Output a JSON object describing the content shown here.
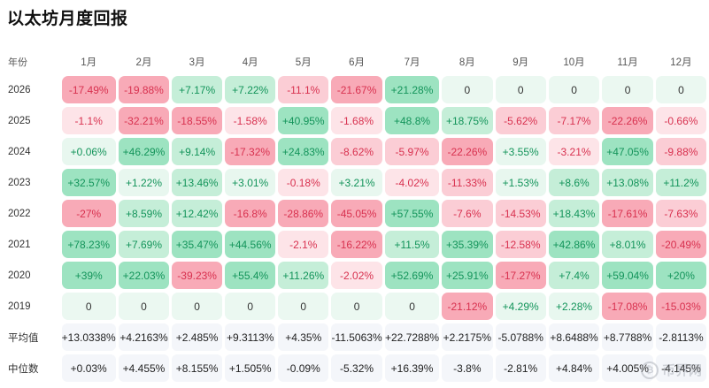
{
  "title": "以太坊月度回报",
  "header": {
    "year_label": "年份",
    "months": [
      "1月",
      "2月",
      "3月",
      "4月",
      "5月",
      "6月",
      "7月",
      "8月",
      "9月",
      "10月",
      "11月",
      "12月"
    ]
  },
  "rows": [
    {
      "year": "2026",
      "values": [
        "-17.49%",
        "-19.88%",
        "+7.17%",
        "+7.22%",
        "-11.1%",
        "-21.67%",
        "+21.28%",
        "0",
        "0",
        "0",
        "0",
        "0"
      ]
    },
    {
      "year": "2025",
      "values": [
        "-1.1%",
        "-32.21%",
        "-18.55%",
        "-1.58%",
        "+40.95%",
        "-1.68%",
        "+48.8%",
        "+18.75%",
        "-5.62%",
        "-7.17%",
        "-22.26%",
        "-0.66%"
      ]
    },
    {
      "year": "2024",
      "values": [
        "+0.06%",
        "+46.29%",
        "+9.14%",
        "-17.32%",
        "+24.83%",
        "-8.62%",
        "-5.97%",
        "-22.26%",
        "+3.55%",
        "-3.21%",
        "+47.05%",
        "-9.88%"
      ]
    },
    {
      "year": "2023",
      "values": [
        "+32.57%",
        "+1.22%",
        "+13.46%",
        "+3.01%",
        "-0.18%",
        "+3.21%",
        "-4.02%",
        "-11.33%",
        "+1.53%",
        "+8.6%",
        "+13.08%",
        "+11.2%"
      ]
    },
    {
      "year": "2022",
      "values": [
        "-27%",
        "+8.59%",
        "+12.42%",
        "-16.8%",
        "-28.86%",
        "-45.05%",
        "+57.55%",
        "-7.6%",
        "-14.53%",
        "+18.43%",
        "-17.61%",
        "-7.63%"
      ]
    },
    {
      "year": "2021",
      "values": [
        "+78.23%",
        "+7.69%",
        "+35.47%",
        "+44.56%",
        "-2.1%",
        "-16.22%",
        "+11.5%",
        "+35.39%",
        "-12.58%",
        "+42.86%",
        "+8.01%",
        "-20.49%"
      ]
    },
    {
      "year": "2020",
      "values": [
        "+39%",
        "+22.03%",
        "-39.23%",
        "+55.4%",
        "+11.26%",
        "-2.02%",
        "+52.69%",
        "+25.91%",
        "-17.27%",
        "+7.4%",
        "+59.04%",
        "+20%"
      ]
    },
    {
      "year": "2019",
      "values": [
        "0",
        "0",
        "0",
        "0",
        "0",
        "0",
        "0",
        "-21.12%",
        "+4.29%",
        "+2.28%",
        "-17.08%",
        "-15.03%"
      ]
    }
  ],
  "summary": [
    {
      "label": "平均值",
      "values": [
        "+13.0338%",
        "+4.2163%",
        "+2.485%",
        "+9.3113%",
        "+4.35%",
        "-11.5063%",
        "+22.7288%",
        "+2.2175%",
        "-5.0788%",
        "+8.6488%",
        "+8.7788%",
        "-2.8113%"
      ]
    },
    {
      "label": "中位数",
      "values": [
        "+0.03%",
        "+4.455%",
        "+8.155%",
        "+1.505%",
        "-0.09%",
        "-5.32%",
        "+16.39%",
        "-3.8%",
        "-2.81%",
        "+4.84%",
        "+4.005%",
        "-4.145%"
      ]
    }
  ],
  "watermark": {
    "text": "币界网",
    "icon": "coin-logo-icon"
  },
  "colors": {
    "zero_bg": "#ebf8f1",
    "zero_text": "#333333",
    "pos_text": "#13945a",
    "neg_text": "#d8314f",
    "pos_light": "#e8f7ef",
    "pos_mid": "#c5eed8",
    "pos_strong": "#9de3c1",
    "neg_light": "#fde4e8",
    "neg_mid": "#fbcdd5",
    "neg_strong": "#f8aab7"
  }
}
